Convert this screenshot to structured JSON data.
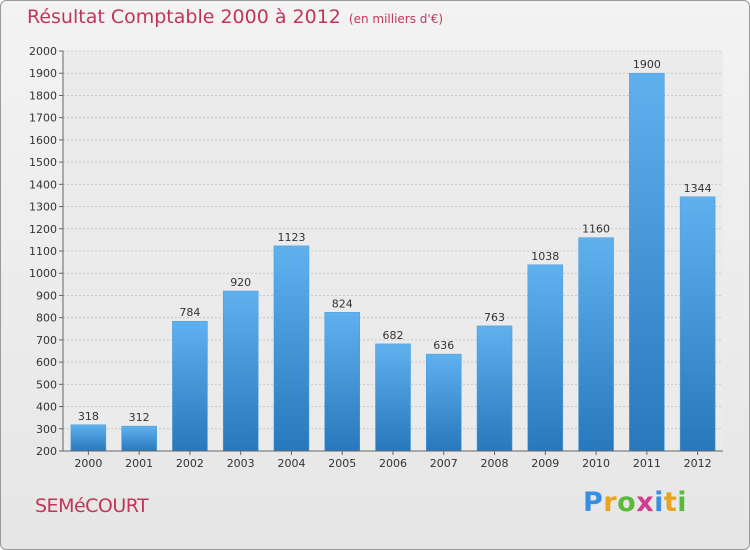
{
  "header": {
    "title": "Résultat Comptable 2000 à 2012",
    "subtitle": "(en milliers d'€)"
  },
  "footer": {
    "city": "SEMéCOURT",
    "logo": [
      "P",
      "r",
      "o",
      "x",
      "i",
      "t",
      "i"
    ]
  },
  "colors": {
    "title": "#c0365a",
    "bar_light": "#5aacea",
    "bar_dark": "#2a7cc0",
    "grid": "#c8c8c8"
  },
  "chart_data": {
    "type": "bar",
    "title": "Résultat Comptable 2000 à 2012",
    "categories": [
      "2000",
      "2001",
      "2002",
      "2003",
      "2004",
      "2005",
      "2006",
      "2007",
      "2008",
      "2009",
      "2010",
      "2011",
      "2012"
    ],
    "values": [
      318,
      312,
      784,
      920,
      1123,
      824,
      682,
      636,
      763,
      1038,
      1160,
      1900,
      1344
    ],
    "ylim": [
      200,
      2000
    ],
    "yticks": [
      200,
      300,
      400,
      500,
      600,
      700,
      800,
      900,
      1000,
      1100,
      1200,
      1300,
      1400,
      1500,
      1600,
      1700,
      1800,
      1900,
      2000
    ],
    "grid": true
  }
}
